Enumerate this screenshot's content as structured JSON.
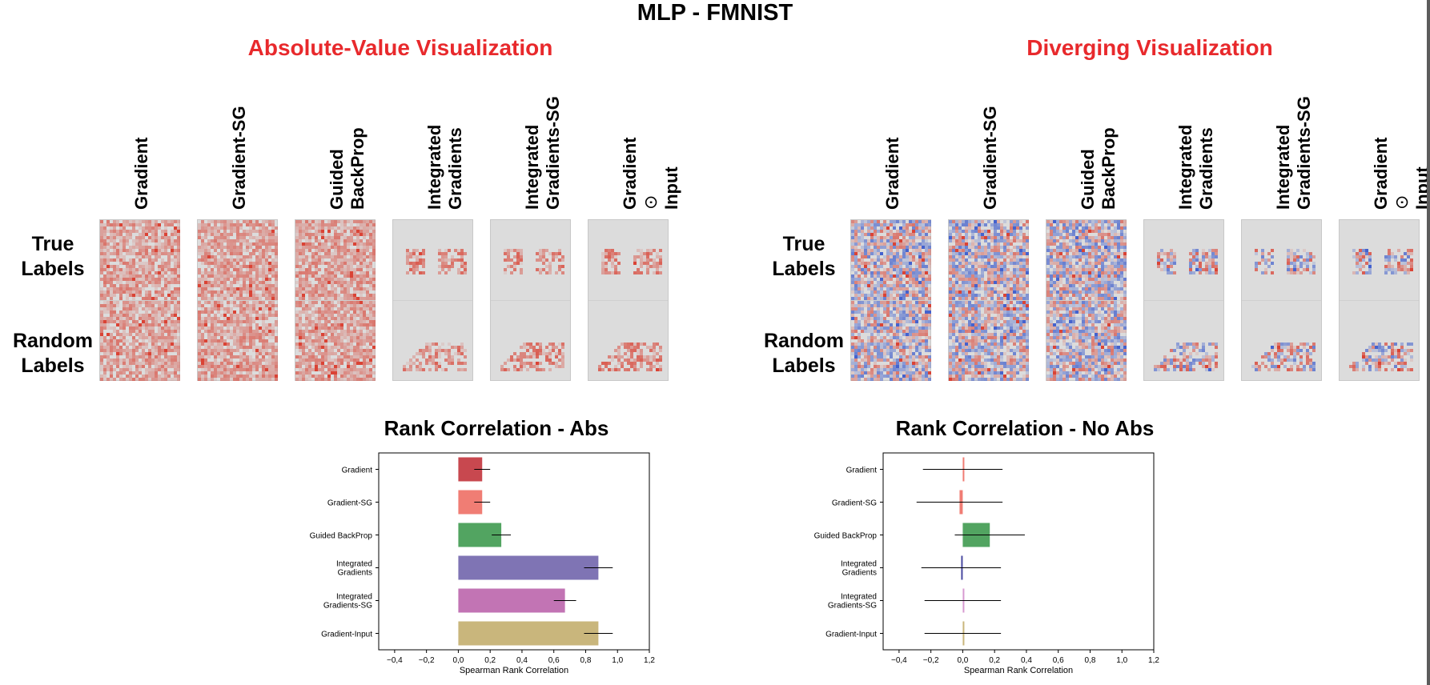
{
  "title": "MLP - FMNIST",
  "sections": [
    {
      "title": "Absolute-Value Visualization"
    },
    {
      "title": "Diverging Visualization"
    }
  ],
  "column_labels": [
    {
      "line1": "Gradient",
      "line2": ""
    },
    {
      "line1": "Gradient-SG",
      "line2": ""
    },
    {
      "line1": "Guided",
      "line2": "BackProp"
    },
    {
      "line1": "Integrated",
      "line2": "Gradients"
    },
    {
      "line1": "Integrated",
      "line2": "Gradients-SG"
    },
    {
      "line1": "Gradient",
      "line2": "⊙",
      "line3": "Input"
    }
  ],
  "row_labels": [
    {
      "line1": "True",
      "line2": "Labels"
    },
    {
      "line1": "Random",
      "line2": "Labels"
    }
  ],
  "colors": {
    "section_title": "#e8292c",
    "abs_positive": "#d93a2b",
    "neg_blue": "#3b5bcc",
    "background_map": "#dcdcdc"
  },
  "chart_data": [
    {
      "type": "bar",
      "title": "Rank Correlation - Abs",
      "xlabel": "Spearman Rank Correlation",
      "ylabel": "",
      "xlim": [
        -0.5,
        1.2
      ],
      "xticks": [
        "−0,4",
        "−0,2",
        "0,0",
        "0,2",
        "0,4",
        "0,6",
        "0,8",
        "1,0",
        "1,2"
      ],
      "xtick_values": [
        -0.4,
        -0.2,
        0.0,
        0.2,
        0.4,
        0.6,
        0.8,
        1.0,
        1.2
      ],
      "categories": [
        {
          "line1": "Gradient",
          "line2": ""
        },
        {
          "line1": "Gradient-SG",
          "line2": ""
        },
        {
          "line1": "Guided BackProp",
          "line2": ""
        },
        {
          "line1": "Integrated",
          "line2": "Gradients"
        },
        {
          "line1": "Integrated",
          "line2": "Gradients-SG"
        },
        {
          "line1": "Gradient-Input",
          "line2": ""
        }
      ],
      "values": [
        0.15,
        0.15,
        0.27,
        0.88,
        0.67,
        0.88
      ],
      "errors": [
        0.05,
        0.05,
        0.06,
        0.09,
        0.07,
        0.09
      ],
      "colors": [
        "#c8484f",
        "#f07d74",
        "#52a461",
        "#7f74b4",
        "#c274b4",
        "#c9b67c"
      ]
    },
    {
      "type": "bar",
      "title": "Rank Correlation - No Abs",
      "xlabel": "Spearman Rank Correlation",
      "ylabel": "",
      "xlim": [
        -0.5,
        1.2
      ],
      "xticks": [
        "−0,4",
        "−0,2",
        "0,0",
        "0,2",
        "0,4",
        "0,6",
        "0,8",
        "1,0",
        "1,2"
      ],
      "xtick_values": [
        -0.4,
        -0.2,
        0.0,
        0.2,
        0.4,
        0.6,
        0.8,
        1.0,
        1.2
      ],
      "categories": [
        {
          "line1": "Gradient",
          "line2": ""
        },
        {
          "line1": "Gradient-SG",
          "line2": ""
        },
        {
          "line1": "Guided BackProp",
          "line2": ""
        },
        {
          "line1": "Integrated",
          "line2": "Gradients"
        },
        {
          "line1": "Integrated",
          "line2": "Gradients-SG"
        },
        {
          "line1": "Gradient-Input",
          "line2": ""
        }
      ],
      "values": [
        0.0,
        -0.02,
        0.17,
        -0.01,
        0.0,
        0.0
      ],
      "errors": [
        0.25,
        0.27,
        0.22,
        0.25,
        0.24,
        0.24
      ],
      "colors": [
        "#f07d74",
        "#f07d74",
        "#52a461",
        "#4a4aa0",
        "#d79ad0",
        "#c9b67c"
      ]
    }
  ]
}
